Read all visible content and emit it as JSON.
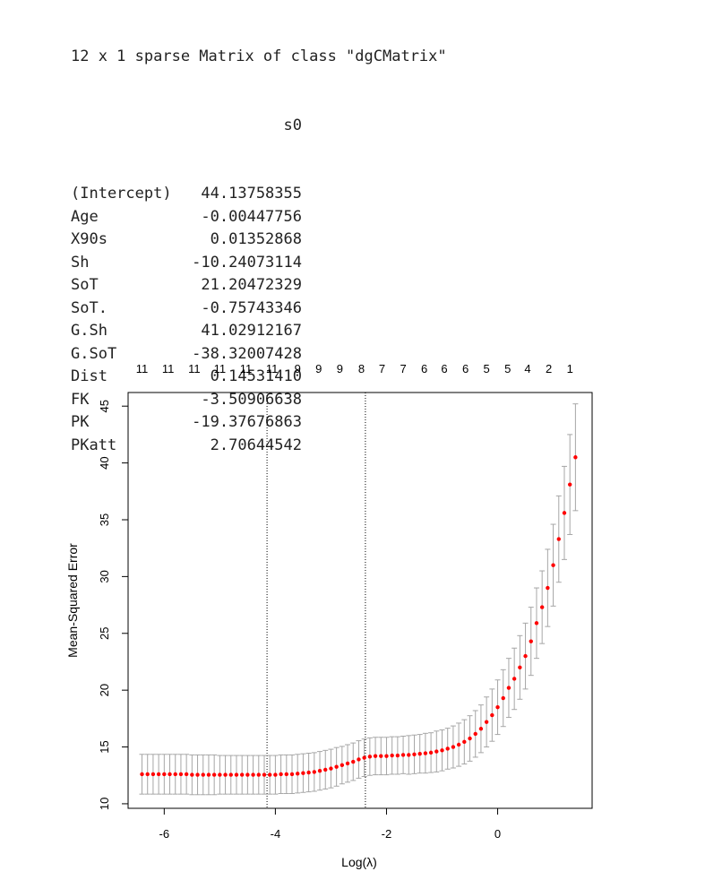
{
  "console": {
    "header": "12 x 1 sparse Matrix of class \"dgCMatrix\"",
    "column_header": "s0",
    "rows": [
      {
        "name": "(Intercept)",
        "value": "44.13758355"
      },
      {
        "name": "Age",
        "value": "-0.00447756"
      },
      {
        "name": "X90s",
        "value": "0.01352868"
      },
      {
        "name": "Sh",
        "value": "-10.24073114"
      },
      {
        "name": "SoT",
        "value": "21.20472329"
      },
      {
        "name": "SoT.",
        "value": "-0.75743346"
      },
      {
        "name": "G.Sh",
        "value": "41.02912167"
      },
      {
        "name": "G.SoT",
        "value": "-38.32007428"
      },
      {
        "name": "Dist",
        "value": "0.14531410"
      },
      {
        "name": "FK",
        "value": "-3.50906638"
      },
      {
        "name": "PK",
        "value": "-19.37676863"
      },
      {
        "name": "PKatt",
        "value": "2.70644542"
      }
    ]
  },
  "chart_data": {
    "type": "scatter",
    "xlabel": "Log(λ)",
    "ylabel": "Mean-Squared Error",
    "xlim": [
      -6.65,
      1.7
    ],
    "ylim": [
      9.6,
      46.2
    ],
    "x_ticks": [
      -6,
      -4,
      -2,
      0
    ],
    "y_ticks": [
      10,
      15,
      20,
      25,
      30,
      35,
      40,
      45
    ],
    "grid": false,
    "vlines": [
      -4.15,
      -2.38
    ],
    "top_axis_ticks": [
      {
        "x": -6.4,
        "label": "11"
      },
      {
        "x": -5.93,
        "label": "11"
      },
      {
        "x": -5.46,
        "label": "11"
      },
      {
        "x": -5.0,
        "label": "11"
      },
      {
        "x": -4.53,
        "label": "11"
      },
      {
        "x": -4.06,
        "label": "11"
      },
      {
        "x": -3.6,
        "label": "9"
      },
      {
        "x": -3.22,
        "label": "9"
      },
      {
        "x": -2.84,
        "label": "9"
      },
      {
        "x": -2.45,
        "label": "8"
      },
      {
        "x": -2.08,
        "label": "7"
      },
      {
        "x": -1.7,
        "label": "7"
      },
      {
        "x": -1.32,
        "label": "6"
      },
      {
        "x": -0.96,
        "label": "6"
      },
      {
        "x": -0.58,
        "label": "6"
      },
      {
        "x": -0.2,
        "label": "5"
      },
      {
        "x": 0.18,
        "label": "5"
      },
      {
        "x": 0.54,
        "label": "4"
      },
      {
        "x": 0.92,
        "label": "2"
      },
      {
        "x": 1.3,
        "label": "1"
      }
    ],
    "point_color": "#ff0000",
    "errorbar_color": "#a6a6a6",
    "series": [
      {
        "x": [
          -6.4,
          -6.3,
          -6.2,
          -6.1,
          -6.0,
          -5.9,
          -5.8,
          -5.7,
          -5.6,
          -5.5,
          -5.4,
          -5.3,
          -5.2,
          -5.1,
          -5.0,
          -4.9,
          -4.8,
          -4.7,
          -4.6,
          -4.5,
          -4.4,
          -4.3,
          -4.2,
          -4.1,
          -4.0,
          -3.9,
          -3.8,
          -3.7,
          -3.6,
          -3.5,
          -3.4,
          -3.3,
          -3.2,
          -3.1,
          -3.0,
          -2.9,
          -2.8,
          -2.7,
          -2.6,
          -2.5,
          -2.4,
          -2.3,
          -2.2,
          -2.1,
          -2.0,
          -1.9,
          -1.8,
          -1.7,
          -1.6,
          -1.5,
          -1.4,
          -1.3,
          -1.2,
          -1.1,
          -1.0,
          -0.9,
          -0.8,
          -0.7,
          -0.6,
          -0.5,
          -0.4,
          -0.3,
          -0.2,
          -0.1,
          0.0,
          0.1,
          0.2,
          0.3,
          0.4,
          0.5,
          0.6,
          0.7,
          0.8,
          0.9,
          1.0,
          1.1,
          1.2,
          1.3,
          1.4
        ],
        "y": [
          12.6,
          12.6,
          12.6,
          12.6,
          12.6,
          12.6,
          12.6,
          12.6,
          12.6,
          12.55,
          12.55,
          12.55,
          12.55,
          12.55,
          12.55,
          12.55,
          12.55,
          12.55,
          12.55,
          12.55,
          12.55,
          12.55,
          12.55,
          12.55,
          12.55,
          12.6,
          12.6,
          12.6,
          12.65,
          12.7,
          12.75,
          12.8,
          12.9,
          13.0,
          13.1,
          13.25,
          13.4,
          13.55,
          13.7,
          13.9,
          14.05,
          14.15,
          14.2,
          14.2,
          14.2,
          14.25,
          14.25,
          14.3,
          14.3,
          14.35,
          14.4,
          14.45,
          14.5,
          14.6,
          14.7,
          14.85,
          15.0,
          15.2,
          15.45,
          15.75,
          16.15,
          16.6,
          17.2,
          17.8,
          18.5,
          19.3,
          20.2,
          21.0,
          22.0,
          23.0,
          24.3,
          25.9,
          27.3,
          29.0,
          31.0,
          33.3,
          35.6,
          38.1,
          40.5
        ],
        "err": [
          1.75,
          1.75,
          1.75,
          1.75,
          1.75,
          1.75,
          1.75,
          1.75,
          1.75,
          1.75,
          1.75,
          1.75,
          1.75,
          1.75,
          1.7,
          1.7,
          1.7,
          1.7,
          1.7,
          1.7,
          1.7,
          1.7,
          1.7,
          1.7,
          1.7,
          1.7,
          1.7,
          1.7,
          1.7,
          1.7,
          1.7,
          1.7,
          1.7,
          1.7,
          1.7,
          1.7,
          1.65,
          1.65,
          1.65,
          1.65,
          1.65,
          1.65,
          1.65,
          1.65,
          1.65,
          1.65,
          1.65,
          1.65,
          1.7,
          1.7,
          1.7,
          1.75,
          1.75,
          1.8,
          1.8,
          1.8,
          1.85,
          1.9,
          1.95,
          2.0,
          2.05,
          2.1,
          2.2,
          2.3,
          2.4,
          2.5,
          2.6,
          2.7,
          2.8,
          2.9,
          3.0,
          3.1,
          3.2,
          3.4,
          3.6,
          3.8,
          4.1,
          4.4,
          4.7
        ]
      }
    ]
  }
}
